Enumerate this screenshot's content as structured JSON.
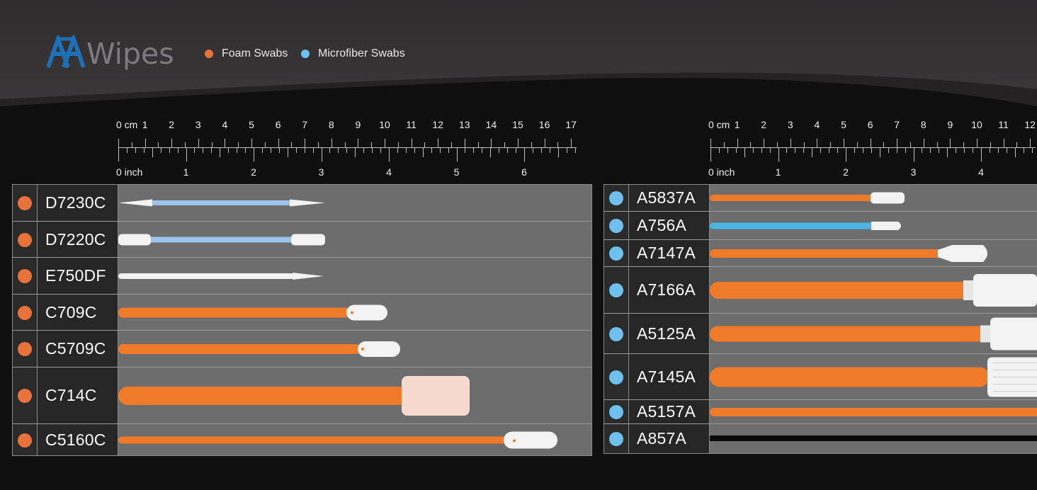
{
  "brand": {
    "logo_text": "AAWipes",
    "logo_mark": "AA",
    "logo_word": "Wipes"
  },
  "legend": [
    {
      "label": "Foam Swabs",
      "color": "#e8733a"
    },
    {
      "label": "Microfiber Swabs",
      "color": "#6fc0ec"
    }
  ],
  "colors": {
    "foam": "#e8733a",
    "microfiber": "#6fc0ec",
    "handle_orange": "#ef7a2a",
    "head": "#f2f2f2"
  },
  "rulers": {
    "left": {
      "cm_labels": [
        "0 cm",
        "1",
        "2",
        "3",
        "4",
        "5",
        "6",
        "7",
        "8",
        "9",
        "10",
        "11",
        "12",
        "13",
        "14",
        "15",
        "16",
        "17"
      ],
      "inch_labels": [
        "0 inch",
        "1",
        "2",
        "3",
        "4",
        "5",
        "6"
      ]
    },
    "right": {
      "cm_labels": [
        "0 cm",
        "1",
        "2",
        "3",
        "4",
        "5",
        "6",
        "7",
        "8",
        "9",
        "10",
        "11",
        "12"
      ],
      "inch_labels": [
        "0 inch",
        "1",
        "2",
        "3",
        "4"
      ]
    }
  },
  "left_table": [
    {
      "model": "D7230C",
      "type": "foam",
      "handle": "blue",
      "shape": "double-pointed"
    },
    {
      "model": "D7220C",
      "type": "foam",
      "handle": "blue",
      "shape": "double-flat"
    },
    {
      "model": "E750DF",
      "type": "foam",
      "handle": "white",
      "shape": "pointed"
    },
    {
      "model": "C709C",
      "type": "foam",
      "handle": "orange",
      "shape": "rounded"
    },
    {
      "model": "C5709C",
      "type": "foam",
      "handle": "orange",
      "shape": "rounded"
    },
    {
      "model": "C714C",
      "type": "foam",
      "handle": "orange",
      "shape": "square"
    },
    {
      "model": "C5160C",
      "type": "foam",
      "handle": "orange",
      "shape": "rounded"
    }
  ],
  "right_table": [
    {
      "model": "A5837A",
      "type": "microfiber",
      "handle": "orange",
      "shape": "small"
    },
    {
      "model": "A756A",
      "type": "microfiber",
      "handle": "blue",
      "shape": "pointed"
    },
    {
      "model": "A7147A",
      "type": "microfiber",
      "handle": "orange",
      "shape": "paddle"
    },
    {
      "model": "A7166A",
      "type": "microfiber",
      "handle": "orange",
      "shape": "wide"
    },
    {
      "model": "A5125A",
      "type": "microfiber",
      "handle": "orange",
      "shape": "wide"
    },
    {
      "model": "A7145A",
      "type": "microfiber",
      "handle": "orange",
      "shape": "wide-ribbed"
    },
    {
      "model": "A5157A",
      "type": "microfiber",
      "handle": "orange",
      "shape": "thin"
    },
    {
      "model": "A857A",
      "type": "microfiber",
      "handle": "black",
      "shape": "thin"
    }
  ]
}
